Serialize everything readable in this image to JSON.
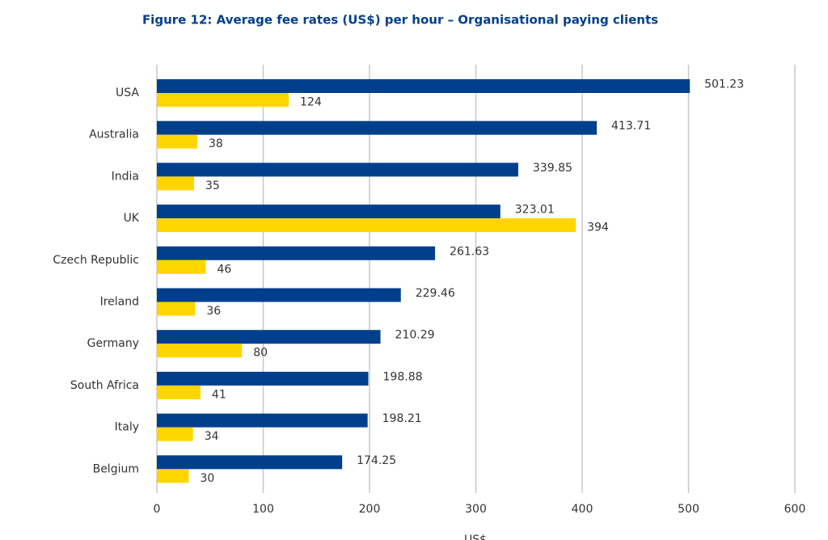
{
  "chart_data": {
    "type": "hbar",
    "title": "Figure 12: Average fee rates (US$) per hour – Organisational paying clients",
    "x_label": "US$",
    "categories": [
      "USA",
      "Australia",
      "India",
      "UK",
      "Czech Republic",
      "Ireland",
      "Germany",
      "South Africa",
      "Italy",
      "Belgium"
    ],
    "series": [
      {
        "color": "#003f8c",
        "values": [
          501.23,
          413.71,
          339.85,
          323.01,
          261.63,
          229.46,
          210.29,
          198.88,
          198.21,
          174.25
        ]
      },
      {
        "color": "#ffd500",
        "values": [
          124,
          38,
          35,
          394,
          46,
          36,
          80,
          41,
          34,
          30
        ]
      }
    ],
    "xlim": [
      0,
      600
    ],
    "xticks": [
      0,
      100,
      200,
      300,
      400,
      500,
      600
    ],
    "grid": true
  }
}
